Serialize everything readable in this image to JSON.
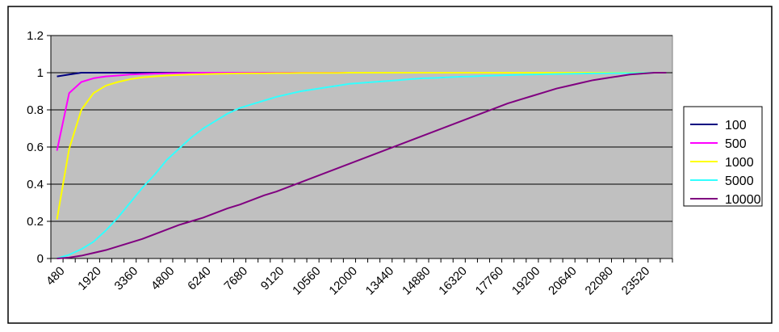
{
  "chart_data": {
    "type": "line",
    "title": "",
    "xlabel": "",
    "ylabel": "",
    "x": [
      480,
      960,
      1440,
      1920,
      2400,
      2880,
      3360,
      3840,
      4320,
      4800,
      5280,
      5760,
      6240,
      6720,
      7200,
      7680,
      8160,
      8640,
      9120,
      9600,
      10080,
      10560,
      11040,
      11520,
      12000,
      12480,
      12960,
      13440,
      13920,
      14400,
      14880,
      15360,
      15840,
      16320,
      16800,
      17280,
      17760,
      18240,
      18720,
      19200,
      19680,
      20160,
      20640,
      21120,
      21600,
      22080,
      22560,
      23040,
      23520,
      24000,
      24480
    ],
    "x_tick_labels": [
      "480",
      "1920",
      "3360",
      "4800",
      "6240",
      "7680",
      "9120",
      "10560",
      "12000",
      "13440",
      "14880",
      "16320",
      "17760",
      "19200",
      "20640",
      "22080",
      "23520"
    ],
    "ylim": [
      0,
      1.2
    ],
    "y_ticks": [
      "0",
      "0.2",
      "0.4",
      "0.6",
      "0.8",
      "1",
      "1.2"
    ],
    "grid": true,
    "legend_position": "right",
    "series": [
      {
        "name": "100",
        "color": "#000080",
        "values": [
          0.98,
          0.99,
          1,
          1,
          1,
          1,
          1,
          1,
          1,
          1,
          1,
          1,
          1,
          1,
          1,
          1,
          1,
          1,
          1,
          1,
          1,
          1,
          1,
          1,
          1,
          1,
          1,
          1,
          1,
          1,
          1,
          1,
          1,
          1,
          1,
          1,
          1,
          1,
          1,
          1,
          1,
          1,
          1,
          1,
          1,
          1,
          1,
          1,
          1,
          1,
          1
        ]
      },
      {
        "name": "500",
        "color": "#ff00ff",
        "values": [
          0.58,
          0.89,
          0.95,
          0.97,
          0.98,
          0.985,
          0.99,
          0.993,
          0.995,
          0.997,
          0.998,
          0.999,
          1,
          1,
          1,
          1,
          1,
          1,
          1,
          1,
          1,
          1,
          1,
          1,
          1,
          1,
          1,
          1,
          1,
          1,
          1,
          1,
          1,
          1,
          1,
          1,
          1,
          1,
          1,
          1,
          1,
          1,
          1,
          1,
          1,
          1,
          1,
          1,
          1,
          1,
          1
        ]
      },
      {
        "name": "1000",
        "color": "#ffff00",
        "values": [
          0.21,
          0.59,
          0.8,
          0.89,
          0.93,
          0.95,
          0.965,
          0.975,
          0.98,
          0.985,
          0.988,
          0.99,
          0.992,
          0.994,
          0.995,
          0.996,
          0.997,
          0.997,
          0.998,
          0.998,
          0.999,
          0.999,
          0.999,
          0.999,
          1,
          1,
          1,
          1,
          1,
          1,
          1,
          1,
          1,
          1,
          1,
          1,
          1,
          1,
          1,
          1,
          1,
          1,
          1,
          1,
          1,
          1,
          1,
          1,
          1,
          1,
          1
        ]
      },
      {
        "name": "5000",
        "color": "#33ffff",
        "values": [
          0.0,
          0.02,
          0.05,
          0.09,
          0.15,
          0.22,
          0.3,
          0.38,
          0.45,
          0.53,
          0.59,
          0.65,
          0.7,
          0.74,
          0.78,
          0.81,
          0.83,
          0.85,
          0.87,
          0.885,
          0.9,
          0.91,
          0.92,
          0.93,
          0.94,
          0.945,
          0.95,
          0.955,
          0.96,
          0.965,
          0.97,
          0.972,
          0.975,
          0.978,
          0.98,
          0.983,
          0.985,
          0.987,
          0.989,
          0.99,
          0.992,
          0.993,
          0.994,
          0.995,
          0.996,
          0.997,
          0.998,
          0.998,
          0.999,
          1,
          1
        ]
      },
      {
        "name": "10000",
        "color": "#800080",
        "values": [
          0.0,
          0.005,
          0.015,
          0.03,
          0.045,
          0.065,
          0.085,
          0.105,
          0.13,
          0.155,
          0.18,
          0.2,
          0.22,
          0.245,
          0.27,
          0.29,
          0.315,
          0.34,
          0.36,
          0.385,
          0.41,
          0.435,
          0.46,
          0.485,
          0.51,
          0.535,
          0.56,
          0.585,
          0.61,
          0.635,
          0.66,
          0.685,
          0.71,
          0.735,
          0.76,
          0.785,
          0.81,
          0.835,
          0.855,
          0.875,
          0.895,
          0.915,
          0.93,
          0.945,
          0.96,
          0.97,
          0.98,
          0.99,
          0.995,
          1,
          1
        ]
      }
    ]
  },
  "colors": {
    "plot_background": "#c0c0c0",
    "grid": "#000000",
    "axis": "#000000",
    "page_background": "#ffffff"
  }
}
